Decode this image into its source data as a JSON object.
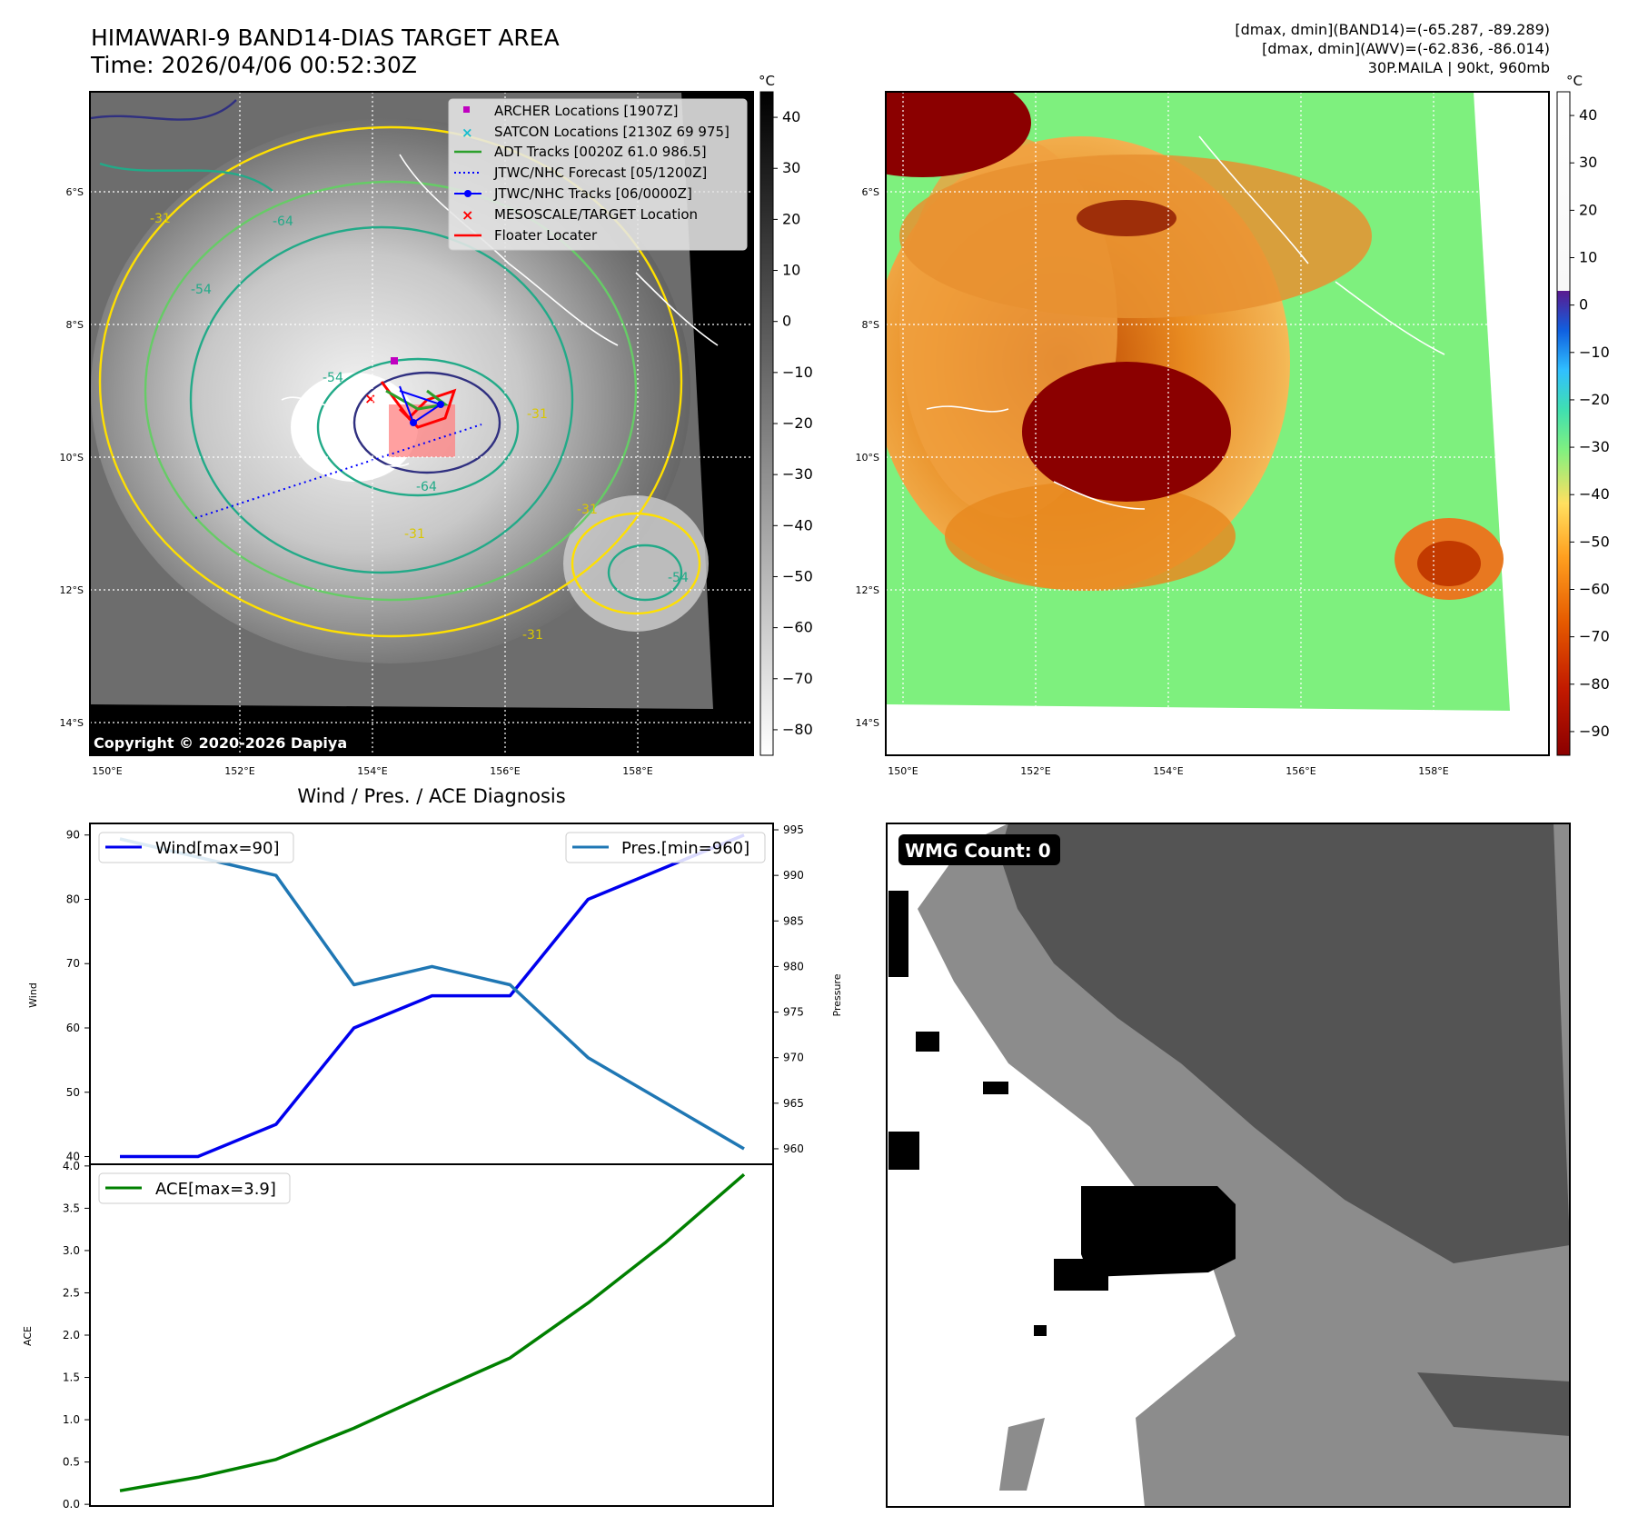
{
  "header": {
    "title_line1": "HIMAWARI-9 BAND14-DIAS TARGET AREA",
    "title_line2": "Time: 2026/04/06 00:52:30Z",
    "info_line1": "[dmax, dmin](BAND14)=(-65.287, -89.289)",
    "info_line2": "[dmax, dmin](AWV)=(-62.836, -86.014)",
    "info_line3": "30P.MAILA | 90kt, 960mb"
  },
  "map_axes": {
    "lat_labels": [
      "6°S",
      "8°S",
      "10°S",
      "12°S",
      "14°S"
    ],
    "lon_labels": [
      "150°E",
      "152°E",
      "154°E",
      "156°E",
      "158°E"
    ],
    "copyright": "Copyright © 2020-2026 Dapiya",
    "contour_labels": [
      "-31",
      "-54",
      "-64"
    ]
  },
  "colorbar_gray": {
    "unit": "°C",
    "ticks": [
      "40",
      "30",
      "20",
      "10",
      "0",
      "−10",
      "−20",
      "−30",
      "−40",
      "−50",
      "−60",
      "−70",
      "−80"
    ]
  },
  "colorbar_color": {
    "unit": "°C",
    "ticks": [
      "40",
      "30",
      "20",
      "10",
      "0",
      "−10",
      "−20",
      "−30",
      "−40",
      "−50",
      "−60",
      "−70",
      "−80",
      "−90"
    ]
  },
  "legend": {
    "items": [
      {
        "label": "ARCHER Locations [1907Z]",
        "color": "#c000c0"
      },
      {
        "label": "SATCON Locations [2130Z 69 975]",
        "color": "#17becf"
      },
      {
        "label": "ADT Tracks [0020Z 61.0 986.5]",
        "color": "#2ca02c"
      },
      {
        "label": "JTWC/NHC Forecast [05/1200Z]",
        "color": "#0000ff"
      },
      {
        "label": "JTWC/NHC Tracks [06/0000Z]",
        "color": "#0000ff"
      },
      {
        "label": "MESOSCALE/TARGET Location",
        "color": "#ff0000"
      },
      {
        "label": "Floater Locater",
        "color": "#ff0000"
      }
    ]
  },
  "chart_data": [
    {
      "type": "line",
      "title": "Wind / Pres. / ACE Diagnosis",
      "ylabel": "Wind",
      "y2label": "Pressure",
      "x": [
        0,
        1,
        2,
        3,
        4,
        5,
        6,
        7,
        8
      ],
      "series": [
        {
          "name": "Wind[max=90]",
          "axis": "left",
          "color": "#0000ee",
          "values": [
            40,
            40,
            45,
            60,
            65,
            65,
            80,
            85,
            90
          ]
        },
        {
          "name": "Pres.[min=960]",
          "axis": "right",
          "color": "#1f77b4",
          "values": [
            994,
            992,
            990,
            978,
            980,
            978,
            970,
            965,
            960
          ]
        }
      ],
      "ylim": [
        38.8,
        91.8
      ],
      "y2lim": [
        958.3,
        995.7
      ],
      "yticks": [
        "40",
        "50",
        "60",
        "70",
        "80",
        "90"
      ],
      "y2ticks": [
        "960",
        "965",
        "970",
        "975",
        "980",
        "985",
        "990",
        "995"
      ]
    },
    {
      "type": "line",
      "ylabel": "ACE",
      "x": [
        0,
        1,
        2,
        3,
        4,
        5,
        6,
        7,
        8
      ],
      "series": [
        {
          "name": "ACE[max=3.9]",
          "axis": "left",
          "color": "#008000",
          "values": [
            0.16,
            0.32,
            0.53,
            0.9,
            1.32,
            1.73,
            2.38,
            3.1,
            3.9
          ]
        }
      ],
      "ylim": [
        -0.02,
        4.02
      ],
      "yticks": [
        "0.0",
        "0.5",
        "1.0",
        "1.5",
        "2.0",
        "2.5",
        "3.0",
        "3.5",
        "4.0"
      ]
    }
  ],
  "wmg": {
    "label": "WMG Count: 0"
  }
}
